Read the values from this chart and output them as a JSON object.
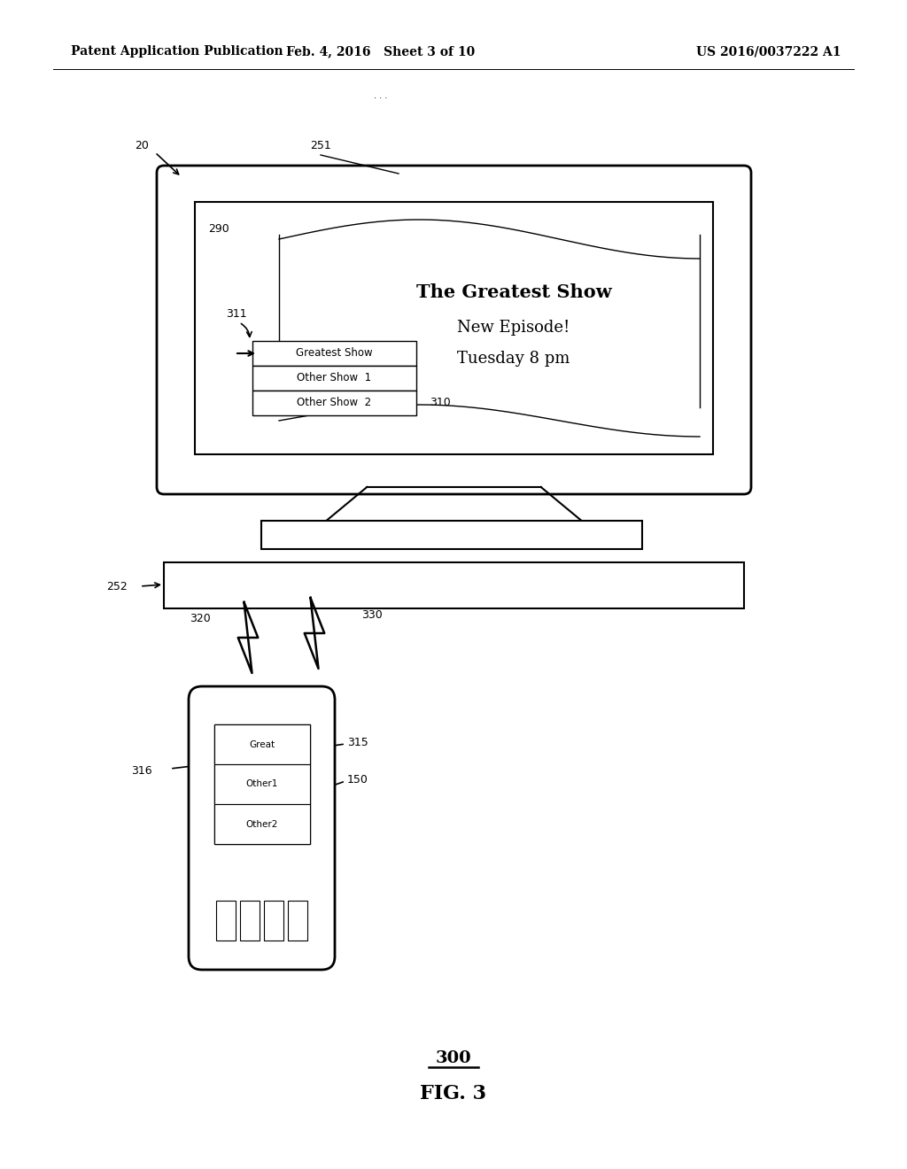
{
  "bg_color": "#ffffff",
  "header_left": "Patent Application Publication",
  "header_mid": "Feb. 4, 2016   Sheet 3 of 10",
  "header_right": "US 2016/0037222 A1"
}
